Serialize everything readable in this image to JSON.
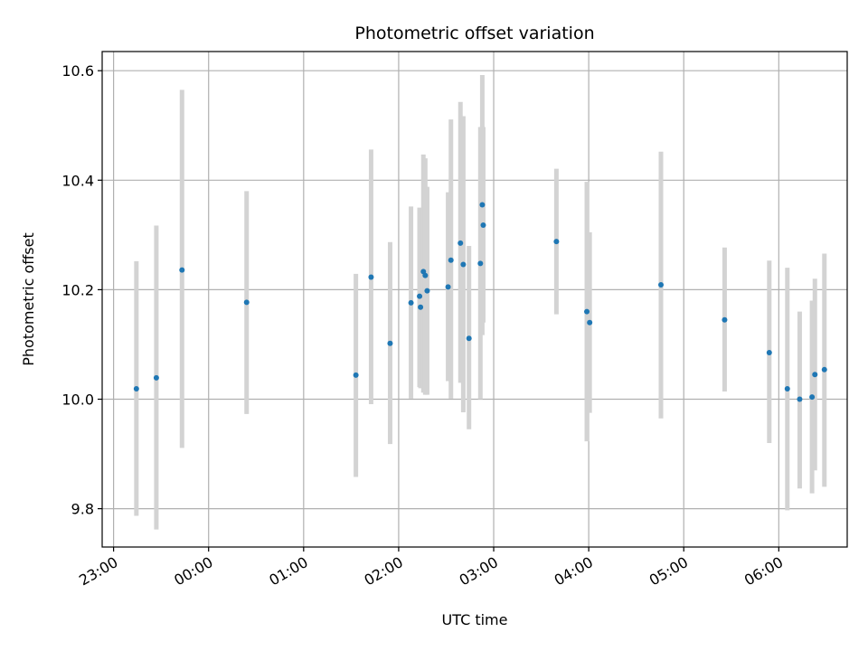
{
  "chart_data": {
    "type": "scatter",
    "title": "Photometric offset variation",
    "xlabel": "UTC time",
    "ylabel": "Photometric offset",
    "x_unit": "hours since 2023-01-01 23:00",
    "xlim": [
      -0.12,
      7.72
    ],
    "ylim": [
      9.73,
      10.635
    ],
    "x_ticks": [
      {
        "value": 0,
        "label": "23:00"
      },
      {
        "value": 1,
        "label": "00:00"
      },
      {
        "value": 2,
        "label": "01:00"
      },
      {
        "value": 3,
        "label": "02:00"
      },
      {
        "value": 4,
        "label": "03:00"
      },
      {
        "value": 5,
        "label": "04:00"
      },
      {
        "value": 6,
        "label": "05:00"
      },
      {
        "value": 7,
        "label": "06:00"
      }
    ],
    "y_ticks": [
      {
        "value": 9.8,
        "label": "9.8"
      },
      {
        "value": 10.0,
        "label": "10.0"
      },
      {
        "value": 10.2,
        "label": "10.2"
      },
      {
        "value": 10.4,
        "label": "10.4"
      },
      {
        "value": 10.6,
        "label": "10.6"
      }
    ],
    "grid": true,
    "point_color": "#1f77b4",
    "errorbar_color": "#d3d3d3",
    "series": [
      {
        "points": [
          {
            "x": 0.24,
            "y": 10.019,
            "low": 9.787,
            "high": 10.252
          },
          {
            "x": 0.45,
            "y": 10.039,
            "low": 9.762,
            "high": 10.317
          },
          {
            "x": 0.72,
            "y": 10.236,
            "low": 9.911,
            "high": 10.565
          },
          {
            "x": 1.4,
            "y": 10.177,
            "low": 9.973,
            "high": 10.38
          },
          {
            "x": 2.55,
            "y": 10.044,
            "low": 9.858,
            "high": 10.229
          },
          {
            "x": 2.71,
            "y": 10.223,
            "low": 9.991,
            "high": 10.456
          },
          {
            "x": 2.91,
            "y": 10.102,
            "low": 9.918,
            "high": 10.287
          },
          {
            "x": 3.13,
            "y": 10.176,
            "low": 10.001,
            "high": 10.352
          },
          {
            "x": 3.22,
            "y": 10.188,
            "low": 10.022,
            "high": 10.35
          },
          {
            "x": 3.23,
            "y": 10.168,
            "low": 10.02,
            "high": 10.316
          },
          {
            "x": 3.26,
            "y": 10.233,
            "low": 10.012,
            "high": 10.447
          },
          {
            "x": 3.28,
            "y": 10.226,
            "low": 10.008,
            "high": 10.44
          },
          {
            "x": 3.3,
            "y": 10.198,
            "low": 10.008,
            "high": 10.388
          },
          {
            "x": 3.52,
            "y": 10.205,
            "low": 10.033,
            "high": 10.378
          },
          {
            "x": 3.55,
            "y": 10.254,
            "low": 10.001,
            "high": 10.511
          },
          {
            "x": 3.65,
            "y": 10.285,
            "low": 10.03,
            "high": 10.543
          },
          {
            "x": 3.68,
            "y": 10.246,
            "low": 9.976,
            "high": 10.517
          },
          {
            "x": 3.74,
            "y": 10.111,
            "low": 9.945,
            "high": 10.28
          },
          {
            "x": 3.86,
            "y": 10.248,
            "low": 10.0,
            "high": 10.497
          },
          {
            "x": 3.88,
            "y": 10.355,
            "low": 10.117,
            "high": 10.592
          },
          {
            "x": 3.89,
            "y": 10.318,
            "low": 10.14,
            "high": 10.497
          },
          {
            "x": 4.66,
            "y": 10.288,
            "low": 10.155,
            "high": 10.421
          },
          {
            "x": 4.98,
            "y": 10.16,
            "low": 9.923,
            "high": 10.397
          },
          {
            "x": 5.01,
            "y": 10.14,
            "low": 9.975,
            "high": 10.305
          },
          {
            "x": 5.76,
            "y": 10.209,
            "low": 9.965,
            "high": 10.452
          },
          {
            "x": 6.43,
            "y": 10.145,
            "low": 10.014,
            "high": 10.277
          },
          {
            "x": 6.9,
            "y": 10.085,
            "low": 9.92,
            "high": 10.253
          },
          {
            "x": 7.09,
            "y": 10.019,
            "low": 9.797,
            "high": 10.24
          },
          {
            "x": 7.22,
            "y": 10.0,
            "low": 9.837,
            "high": 10.16
          },
          {
            "x": 7.35,
            "y": 10.004,
            "low": 9.828,
            "high": 10.18
          },
          {
            "x": 7.38,
            "y": 10.045,
            "low": 9.87,
            "high": 10.22
          },
          {
            "x": 7.48,
            "y": 10.054,
            "low": 9.84,
            "high": 10.266
          }
        ]
      }
    ]
  }
}
